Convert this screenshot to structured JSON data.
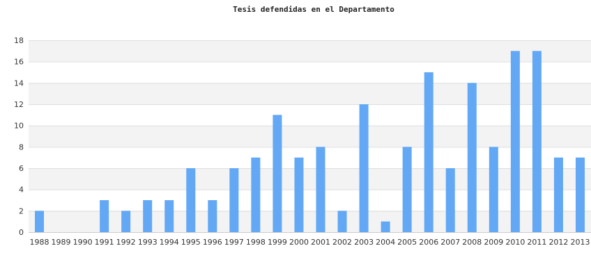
{
  "chart_data": {
    "type": "bar",
    "title": "Tesis defendidas en el Departamento",
    "xlabel": "",
    "ylabel": "",
    "categories": [
      "1988",
      "1989",
      "1990",
      "1991",
      "1992",
      "1993",
      "1994",
      "1995",
      "1996",
      "1997",
      "1998",
      "1999",
      "2000",
      "2001",
      "2002",
      "2003",
      "2004",
      "2005",
      "2006",
      "2007",
      "2008",
      "2009",
      "2010",
      "2011",
      "2012",
      "2013"
    ],
    "values": [
      2,
      0,
      0,
      3,
      2,
      3,
      3,
      6,
      3,
      6,
      7,
      11,
      7,
      8,
      2,
      12,
      1,
      8,
      15,
      6,
      14,
      8,
      17,
      17,
      7,
      7
    ],
    "ylim": [
      0,
      18
    ],
    "yticks": [
      0,
      2,
      4,
      6,
      8,
      10,
      12,
      14,
      16,
      18
    ],
    "grid": true,
    "legend": "none",
    "bar_color": "#62a8f4",
    "band_color": "#f3f3f3"
  }
}
